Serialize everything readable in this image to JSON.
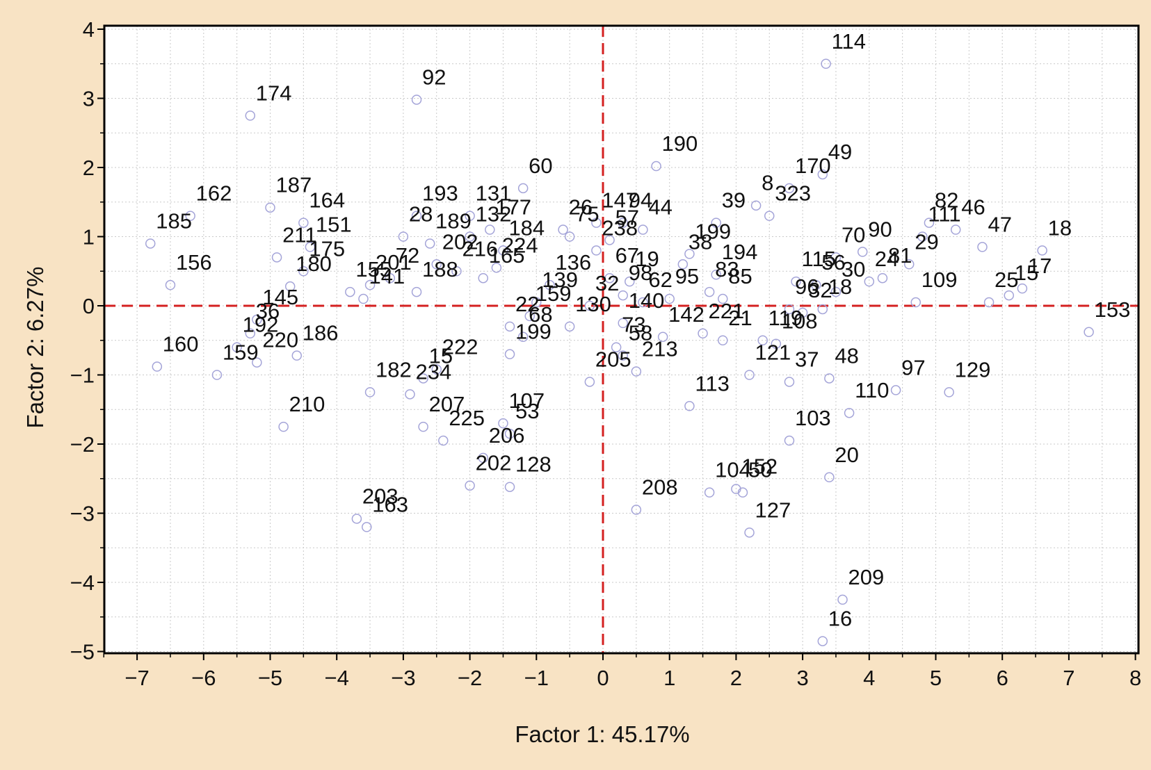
{
  "chart_data": {
    "type": "scatter",
    "xlabel": "Factor 1: 45.17%",
    "ylabel": "Factor 2: 6.27%",
    "xlim": [
      -7.5,
      8
    ],
    "ylim": [
      -5,
      4
    ],
    "xticks": [
      -7,
      -6,
      -5,
      -4,
      -3,
      -2,
      -1,
      0,
      1,
      2,
      3,
      4,
      5,
      6,
      7,
      8
    ],
    "yticks": [
      -5,
      -4,
      -3,
      -2,
      -1,
      0,
      1,
      2,
      3,
      4
    ],
    "xtick_labels": [
      "−7",
      "−6",
      "−5",
      "−4",
      "−3",
      "−2",
      "−1",
      "0",
      "1",
      "2",
      "3",
      "4",
      "5",
      "6",
      "7",
      "8"
    ],
    "ytick_labels": [
      "−5",
      "−4",
      "−3",
      "−2",
      "−1",
      "0",
      "1",
      "2",
      "3",
      "4"
    ],
    "grid": true,
    "reference_lines": {
      "x": 0,
      "y": 0,
      "color": "#d42020",
      "style": "dashed"
    },
    "marker_color": "#a4a4d8",
    "points": [
      {
        "label": "114",
        "x": 3.35,
        "y": 3.5
      },
      {
        "label": "92",
        "x": -2.8,
        "y": 2.98
      },
      {
        "label": "174",
        "x": -5.3,
        "y": 2.75
      },
      {
        "label": "190",
        "x": 0.8,
        "y": 2.02
      },
      {
        "label": "49",
        "x": 3.3,
        "y": 1.9
      },
      {
        "label": "170",
        "x": 2.8,
        "y": 1.7
      },
      {
        "label": "60",
        "x": -1.2,
        "y": 1.7
      },
      {
        "label": "187",
        "x": -5.0,
        "y": 1.42
      },
      {
        "label": "162",
        "x": -6.2,
        "y": 1.3
      },
      {
        "label": "164",
        "x": -4.5,
        "y": 1.2
      },
      {
        "label": "193",
        "x": -2.8,
        "y": 1.3
      },
      {
        "label": "131",
        "x": -2.0,
        "y": 1.3
      },
      {
        "label": "185",
        "x": -6.8,
        "y": 0.9
      },
      {
        "label": "18",
        "x": 6.6,
        "y": 0.8
      },
      {
        "label": "82",
        "x": 4.9,
        "y": 1.2
      },
      {
        "label": "46",
        "x": 5.3,
        "y": 1.1
      },
      {
        "label": "47",
        "x": 5.7,
        "y": 0.85
      },
      {
        "label": "90",
        "x": 3.9,
        "y": 0.78
      },
      {
        "label": "111",
        "x": 4.8,
        "y": 1.0
      },
      {
        "label": "29",
        "x": 4.6,
        "y": 0.6
      },
      {
        "label": "81",
        "x": 4.2,
        "y": 0.4
      },
      {
        "label": "24",
        "x": 4.0,
        "y": 0.35
      },
      {
        "label": "109",
        "x": 4.7,
        "y": 0.05
      },
      {
        "label": "25",
        "x": 5.8,
        "y": 0.05
      },
      {
        "label": "15",
        "x": 6.1,
        "y": 0.15
      },
      {
        "label": "17",
        "x": 6.3,
        "y": 0.25
      },
      {
        "label": "156",
        "x": -6.5,
        "y": 0.3
      },
      {
        "label": "180",
        "x": -4.7,
        "y": 0.28
      },
      {
        "label": "153",
        "x": 7.3,
        "y": -0.38
      },
      {
        "label": "145",
        "x": -5.2,
        "y": -0.2
      },
      {
        "label": "36",
        "x": -5.3,
        "y": -0.4
      },
      {
        "label": "192",
        "x": -5.5,
        "y": -0.6
      },
      {
        "label": "160",
        "x": -6.7,
        "y": -0.88
      },
      {
        "label": "159",
        "x": -5.8,
        "y": -1.0
      },
      {
        "label": "220",
        "x": -5.2,
        "y": -0.82
      },
      {
        "label": "186",
        "x": -4.6,
        "y": -0.72
      },
      {
        "label": "210",
        "x": -4.8,
        "y": -1.75
      },
      {
        "label": "182",
        "x": -3.5,
        "y": -1.25
      },
      {
        "label": "234",
        "x": -2.9,
        "y": -1.28
      },
      {
        "label": "15b",
        "x": -2.7,
        "y": -1.05
      },
      {
        "label": "222",
        "x": -2.5,
        "y": -0.92
      },
      {
        "label": "207",
        "x": -2.7,
        "y": -1.75
      },
      {
        "label": "225",
        "x": -2.4,
        "y": -1.95
      },
      {
        "label": "107",
        "x": -1.5,
        "y": -1.7
      },
      {
        "label": "53",
        "x": -1.4,
        "y": -1.85
      },
      {
        "label": "206",
        "x": -1.8,
        "y": -2.2
      },
      {
        "label": "202",
        "x": -2.0,
        "y": -2.6
      },
      {
        "label": "128",
        "x": -1.4,
        "y": -2.62
      },
      {
        "label": "203",
        "x": -3.7,
        "y": -3.08
      },
      {
        "label": "163",
        "x": -3.55,
        "y": -3.2
      },
      {
        "label": "199",
        "x": -1.4,
        "y": -0.7
      },
      {
        "label": "205",
        "x": -0.2,
        "y": -1.1
      },
      {
        "label": "130",
        "x": -0.5,
        "y": -0.3
      },
      {
        "label": "73",
        "x": 0.2,
        "y": -0.6
      },
      {
        "label": "58",
        "x": 0.3,
        "y": -0.72
      },
      {
        "label": "213",
        "x": 0.5,
        "y": -0.95
      },
      {
        "label": "113",
        "x": 1.3,
        "y": -1.45
      },
      {
        "label": "37",
        "x": 2.8,
        "y": -1.1
      },
      {
        "label": "48",
        "x": 3.4,
        "y": -1.05
      },
      {
        "label": "97",
        "x": 4.4,
        "y": -1.22
      },
      {
        "label": "129",
        "x": 5.2,
        "y": -1.25
      },
      {
        "label": "103",
        "x": 2.8,
        "y": -1.95
      },
      {
        "label": "110",
        "x": 3.7,
        "y": -1.55
      },
      {
        "label": "20",
        "x": 3.4,
        "y": -2.48
      },
      {
        "label": "104",
        "x": 1.6,
        "y": -2.7
      },
      {
        "label": "152",
        "x": 2.0,
        "y": -2.65
      },
      {
        "label": "50",
        "x": 2.1,
        "y": -2.7
      },
      {
        "label": "127",
        "x": 2.2,
        "y": -3.28
      },
      {
        "label": "208",
        "x": 0.5,
        "y": -2.95
      },
      {
        "label": "209",
        "x": 3.6,
        "y": -4.25
      },
      {
        "label": "16",
        "x": 3.3,
        "y": -4.85
      },
      {
        "label": "121",
        "x": 2.2,
        "y": -1.0
      },
      {
        "label": "108",
        "x": 2.6,
        "y": -0.55
      },
      {
        "label": "119",
        "x": 2.4,
        "y": -0.5
      },
      {
        "label": "21",
        "x": 1.8,
        "y": -0.5
      },
      {
        "label": "221",
        "x": 1.5,
        "y": -0.4
      },
      {
        "label": "142",
        "x": 0.9,
        "y": -0.45
      },
      {
        "label": "96",
        "x": 2.8,
        "y": -0.05
      },
      {
        "label": "32",
        "x": 3.0,
        "y": -0.1
      },
      {
        "label": "18b",
        "x": 3.3,
        "y": -0.05
      },
      {
        "label": "30",
        "x": 3.5,
        "y": 0.2
      },
      {
        "label": "56",
        "x": 3.2,
        "y": 0.3
      },
      {
        "label": "115",
        "x": 2.9,
        "y": 0.35
      },
      {
        "label": "70",
        "x": 3.5,
        "y": 0.7
      },
      {
        "label": "85",
        "x": 1.8,
        "y": 0.1
      },
      {
        "label": "83",
        "x": 1.6,
        "y": 0.2
      },
      {
        "label": "95",
        "x": 1.0,
        "y": 0.1
      },
      {
        "label": "194",
        "x": 1.7,
        "y": 0.45
      },
      {
        "label": "38",
        "x": 1.2,
        "y": 0.6
      },
      {
        "label": "199b",
        "x": 1.3,
        "y": 0.75
      },
      {
        "label": "39",
        "x": 1.7,
        "y": 1.2
      },
      {
        "label": "8",
        "x": 2.3,
        "y": 1.45
      },
      {
        "label": "323",
        "x": 2.5,
        "y": 1.3
      },
      {
        "label": "44",
        "x": 0.6,
        "y": 1.1
      },
      {
        "label": "57",
        "x": 0.1,
        "y": 0.95
      },
      {
        "label": "147",
        "x": -0.1,
        "y": 1.2
      },
      {
        "label": "94",
        "x": 0.3,
        "y": 1.2
      },
      {
        "label": "238",
        "x": -0.1,
        "y": 0.8
      },
      {
        "label": "19",
        "x": 0.4,
        "y": 0.35
      },
      {
        "label": "67",
        "x": 0.1,
        "y": 0.4
      },
      {
        "label": "98",
        "x": 0.3,
        "y": 0.15
      },
      {
        "label": "32b",
        "x": -0.2,
        "y": 0.0
      },
      {
        "label": "26",
        "x": -0.6,
        "y": 1.1
      },
      {
        "label": "75",
        "x": -0.5,
        "y": 1.0
      },
      {
        "label": "136",
        "x": -0.8,
        "y": 0.3
      },
      {
        "label": "165",
        "x": -1.8,
        "y": 0.4
      },
      {
        "label": "224",
        "x": -1.6,
        "y": 0.55
      },
      {
        "label": "184",
        "x": -1.5,
        "y": 0.8
      },
      {
        "label": "177",
        "x": -1.7,
        "y": 1.1
      },
      {
        "label": "132",
        "x": -2.0,
        "y": 1.0
      },
      {
        "label": "189",
        "x": -2.6,
        "y": 0.9
      },
      {
        "label": "28",
        "x": -3.0,
        "y": 1.0
      },
      {
        "label": "202b",
        "x": -2.5,
        "y": 0.6
      },
      {
        "label": "216",
        "x": -2.2,
        "y": 0.5
      },
      {
        "label": "188",
        "x": -2.8,
        "y": 0.2
      },
      {
        "label": "72",
        "x": -3.2,
        "y": 0.4
      },
      {
        "label": "201",
        "x": -3.5,
        "y": 0.3
      },
      {
        "label": "155",
        "x": -3.8,
        "y": 0.2
      },
      {
        "label": "141",
        "x": -3.6,
        "y": 0.1
      },
      {
        "label": "211",
        "x": -4.9,
        "y": 0.7
      },
      {
        "label": "151",
        "x": -4.4,
        "y": 0.85
      },
      {
        "label": "175",
        "x": -4.5,
        "y": 0.5
      },
      {
        "label": "22",
        "x": -1.4,
        "y": -0.3
      },
      {
        "label": "68",
        "x": -1.2,
        "y": -0.45
      },
      {
        "label": "159b",
        "x": -1.1,
        "y": -0.15
      },
      {
        "label": "139",
        "x": -1.0,
        "y": 0.05
      },
      {
        "label": "140",
        "x": 0.3,
        "y": -0.25
      },
      {
        "label": "62",
        "x": 0.6,
        "y": 0.05
      }
    ]
  }
}
